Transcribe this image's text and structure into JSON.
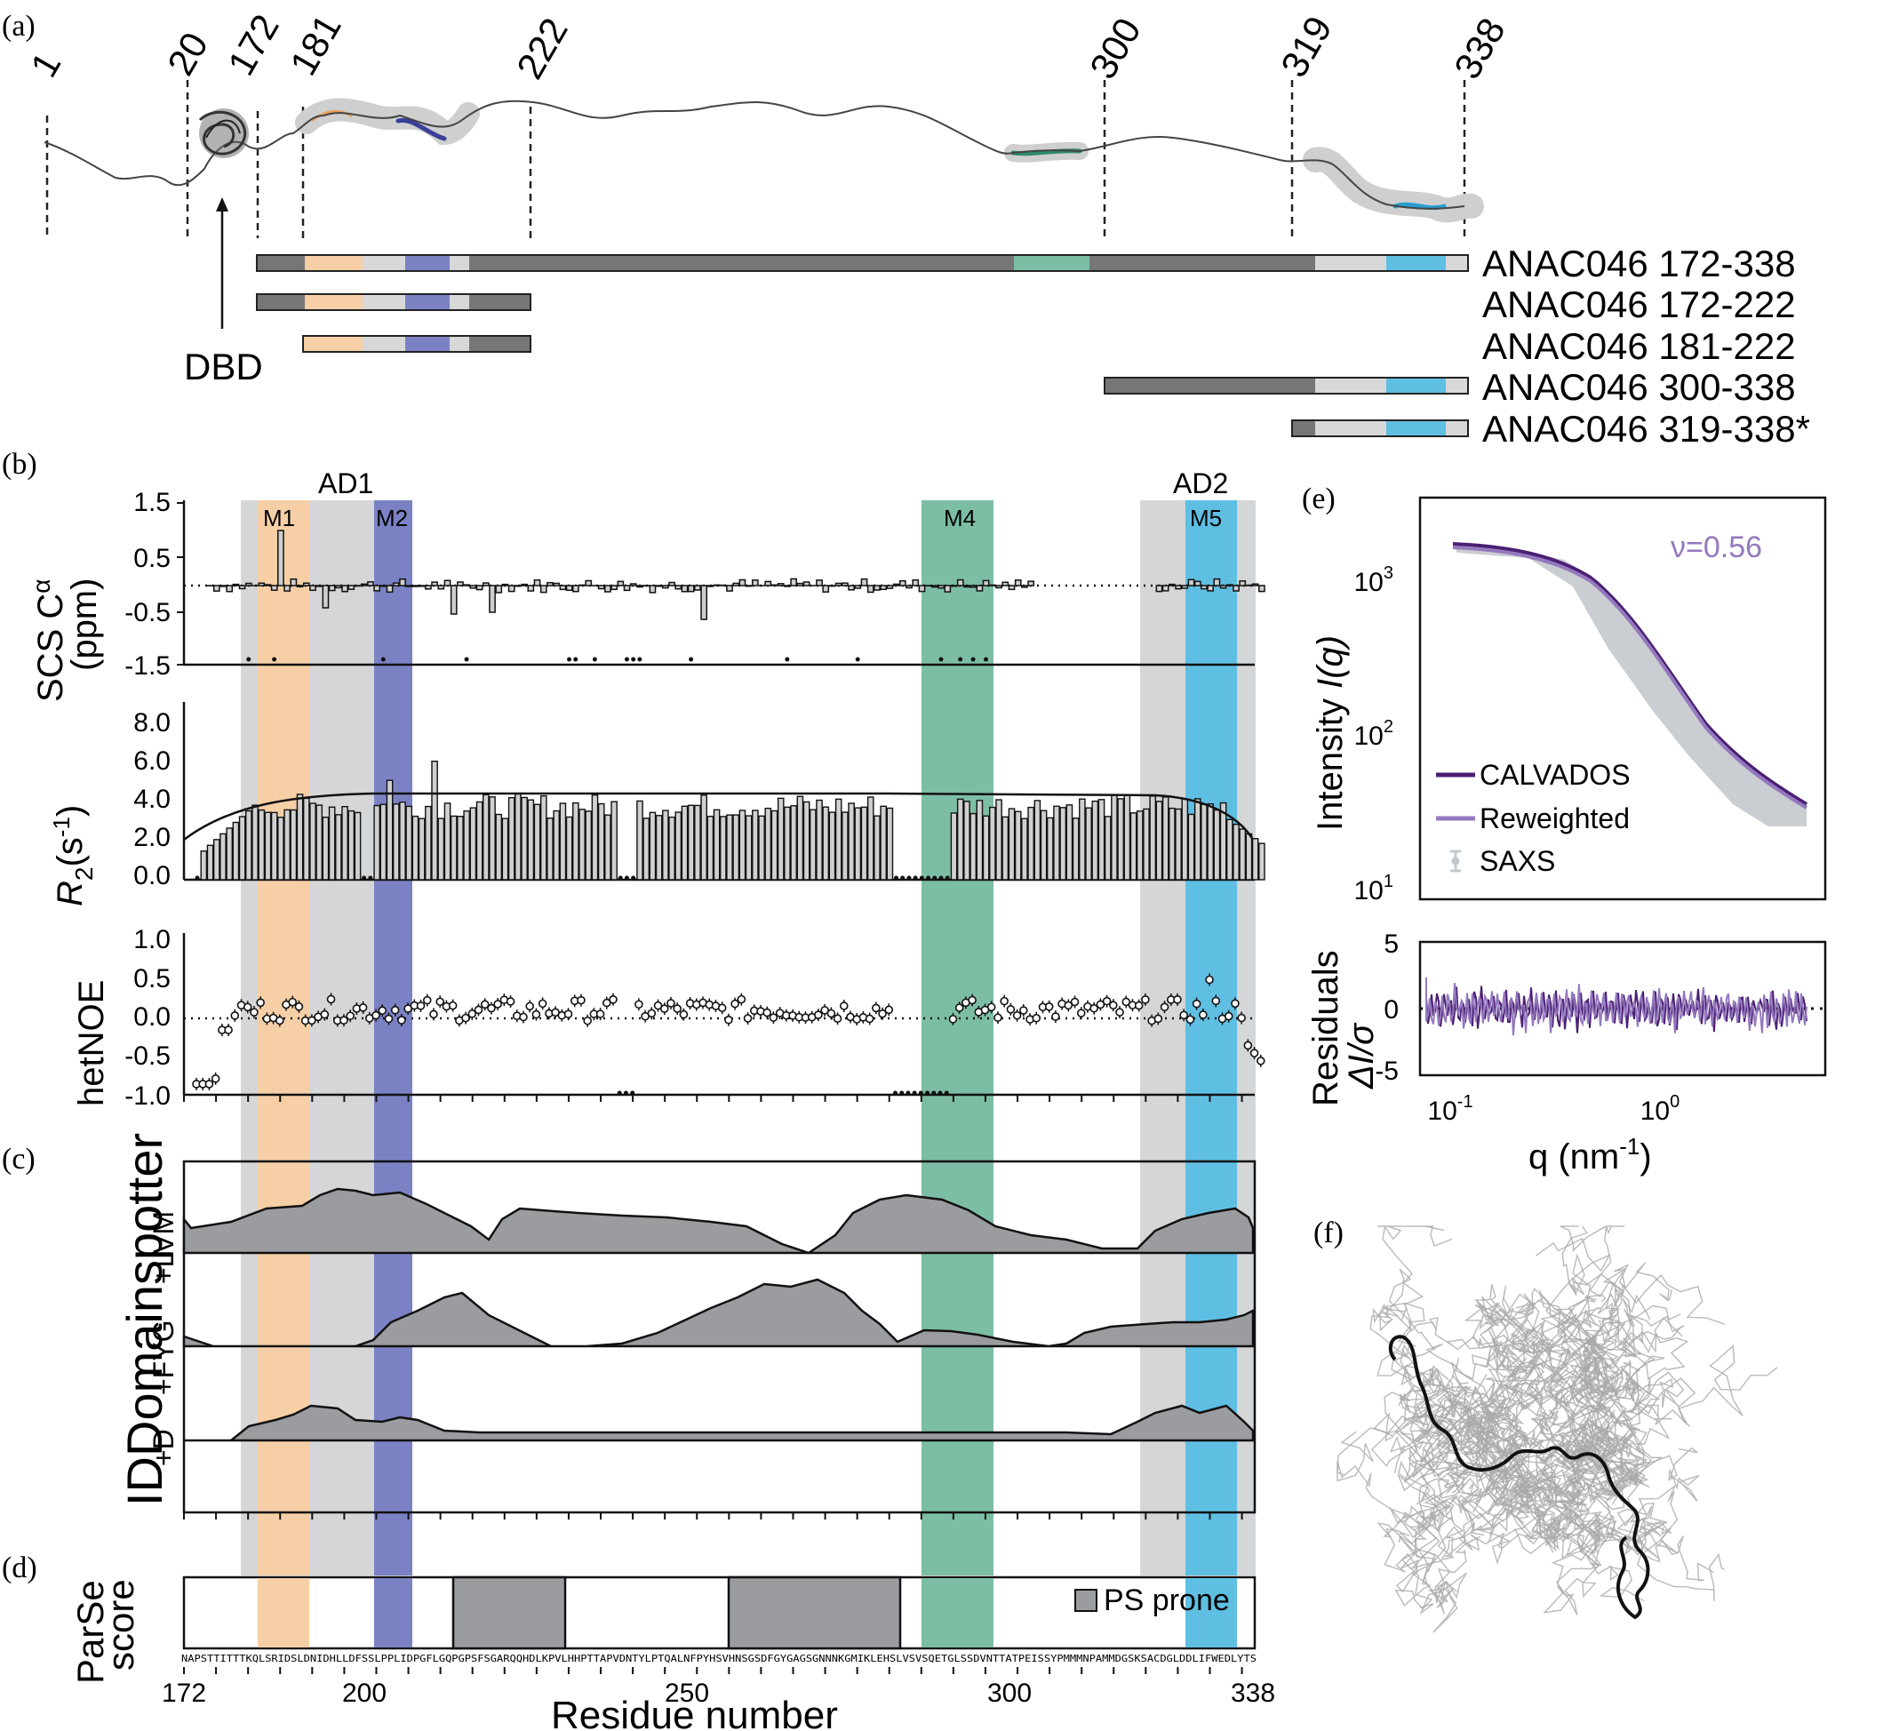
{
  "panel_a": {
    "label": "(a)",
    "positions": [
      "1",
      "20",
      "172",
      "181",
      "222",
      "300",
      "319",
      "338"
    ],
    "dbd_label": "DBD",
    "constructs": [
      "ANAC046 172-338",
      "ANAC046 172-222",
      "ANAC046 181-222",
      "ANAC046 300-338",
      "ANAC046 319-338*"
    ]
  },
  "panel_b": {
    "label": "(b)",
    "ad1": "AD1",
    "ad2": "AD2",
    "motifs": [
      "M1",
      "M2",
      "M4",
      "M5"
    ],
    "scs": {
      "ylabel": "SCS Cα (ppm)",
      "ylabel_main": "SCS C",
      "ylabel_sup": "α",
      "ylabel_unit": "(ppm)",
      "yticks": [
        "1.5",
        "0.5",
        "-0.5",
        "-1.5"
      ]
    },
    "r2": {
      "ylabel_R": "R",
      "ylabel_sub": "2",
      "ylabel_unit": "(s",
      "ylabel_exp": "-1",
      "ylabel_close": ")",
      "yticks": [
        "8.0",
        "6.0",
        "4.0",
        "2.0",
        "0.0"
      ]
    },
    "hetnoe": {
      "ylabel": "hetNOE",
      "yticks": [
        "1.0",
        "0.5",
        "0.0",
        "-0.5",
        "-1.0"
      ]
    }
  },
  "panel_c": {
    "label": "(c)",
    "ylabel": "IDDomainspotter",
    "tracks": [
      "+LVM",
      "+FYG",
      "+D"
    ]
  },
  "panel_d": {
    "label": "(d)",
    "ylabel_line1": "ParSe",
    "ylabel_line2": "score",
    "legend": "PS prone",
    "sequence": "NAPSTTITTTKQLSRIDSLDNIDHLLDFSSLPPLIDPGFLGQPGPSFSGARQQHDLKPVLHHPTTAPVDNTYLPTQALNFPYHSVHNSGSDFGYGAGSGNNNKGMIKLEHSLVSVSQETGLSSDVNTTATPEISSYPMMMNPAMMDGSKSACDGLDDLIFWEDLYTS",
    "xticks": [
      "172",
      "200",
      "250",
      "300",
      "338"
    ],
    "xlabel": "Residue number"
  },
  "panel_e": {
    "label": "(e)",
    "nu": "ν=0.56",
    "ylabel_main": "Intensity ",
    "ylabel_italic": "I(q)",
    "legend": [
      "CALVADOS",
      "Reweighted",
      "SAXS"
    ],
    "yticks": [
      "10",
      "10",
      "10"
    ],
    "yexps": [
      "3",
      "2",
      "1"
    ],
    "res_label_line1": "Residuals",
    "res_label_line2": "ΔI/σ",
    "res_ticks": [
      "5",
      "0",
      "-5"
    ],
    "xticks": [
      "10",
      "10"
    ],
    "xexps": [
      "-1",
      "0"
    ],
    "xlabel": "q (nm",
    "xlabel_exp": "-1",
    "xlabel_close": ")"
  },
  "panel_f": {
    "label": "(f)"
  },
  "colors": {
    "m1": "#f6cfa6",
    "m2": "#7b82c4",
    "m4": "#7cbea4",
    "m5": "#5fbfe2",
    "region": "#d4d6d8",
    "gray_bar": "#767676",
    "light_bar": "#d8d8d8",
    "calvados": "#4b1f73",
    "reweighted": "#9479be",
    "saxs": "#c4c8cc"
  }
}
